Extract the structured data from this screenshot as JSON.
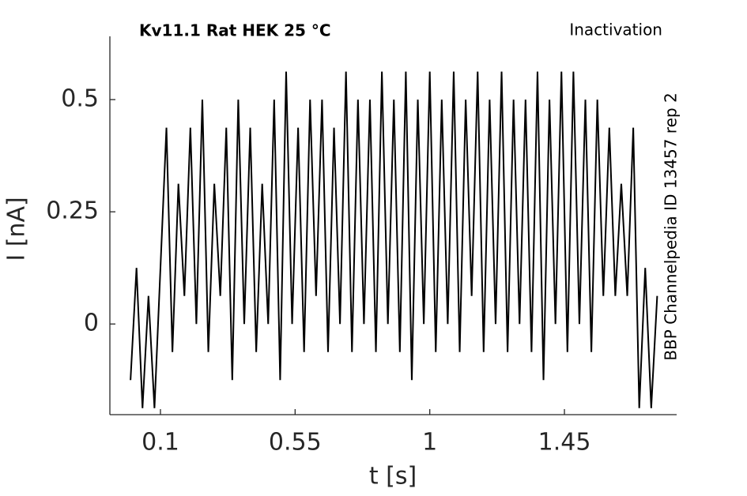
{
  "chart_data": {
    "type": "line",
    "title": "Kv11.1  Rat  HEK  25 °C",
    "subtitle": "Inactivation",
    "annotation": "BBP Channelpedia ID 13457 rep 2",
    "xlabel": "t [s]",
    "ylabel": "I [nA]",
    "x": [
      0,
      0.02,
      0.04,
      0.06,
      0.08,
      0.1,
      0.12,
      0.14,
      0.16,
      0.18,
      0.2,
      0.22,
      0.24,
      0.26,
      0.28,
      0.3,
      0.32,
      0.34,
      0.36,
      0.38,
      0.4,
      0.42,
      0.44,
      0.46,
      0.48,
      0.5,
      0.52,
      0.54,
      0.56,
      0.58,
      0.6,
      0.62,
      0.64,
      0.66,
      0.68,
      0.7,
      0.72,
      0.74,
      0.76,
      0.78,
      0.8,
      0.82,
      0.84,
      0.86,
      0.88,
      0.9,
      0.92,
      0.94,
      0.96,
      0.98,
      1.0,
      1.02,
      1.04,
      1.06,
      1.08,
      1.1,
      1.12,
      1.14,
      1.16,
      1.18,
      1.2,
      1.22,
      1.24,
      1.26,
      1.28,
      1.3,
      1.32,
      1.34,
      1.36,
      1.38,
      1.4,
      1.42,
      1.44,
      1.46,
      1.48,
      1.5,
      1.52,
      1.54,
      1.56,
      1.58,
      1.6,
      1.62,
      1.64,
      1.66,
      1.68,
      1.7,
      1.72,
      1.74,
      1.76
    ],
    "series": [
      {
        "color": "#000000",
        "values": [
          -0.125,
          0.125,
          -0.1875,
          0.0625,
          -0.1875,
          0.125,
          0.4375,
          -0.0625,
          0.3125,
          0.0625,
          0.4375,
          0,
          0.5,
          -0.0625,
          0.3125,
          0.0625,
          0.4375,
          -0.125,
          0.5,
          0,
          0.4375,
          -0.0625,
          0.3125,
          0,
          0.5,
          -0.125,
          0.5625,
          0,
          0.4375,
          -0.0625,
          0.5,
          0.0625,
          0.5,
          -0.0625,
          0.4375,
          0,
          0.5625,
          -0.0625,
          0.5,
          0,
          0.5,
          -0.0625,
          0.5625,
          0,
          0.5,
          -0.0625,
          0.5625,
          -0.125,
          0.5,
          0,
          0.5625,
          -0.0625,
          0.5,
          0,
          0.5625,
          -0.0625,
          0.5,
          0.0625,
          0.5625,
          -0.0625,
          0.5,
          0,
          0.5625,
          -0.0625,
          0.5,
          0,
          0.5,
          -0.0625,
          0.5625,
          -0.125,
          0.5,
          0,
          0.5625,
          -0.0625,
          0.5625,
          0,
          0.5,
          -0.0625,
          0.5,
          0.0625,
          0.4375,
          0.0625,
          0.3125,
          0.0625,
          0.4375,
          -0.1875,
          0.125,
          -0.1875,
          0.0625
        ]
      }
    ],
    "xlim": [
      -0.069,
      1.825
    ],
    "ylim": [
      -0.202,
      0.641
    ],
    "xticks": [
      0.1,
      0.55,
      1,
      1.45
    ],
    "yticks": [
      0,
      0.25,
      0.5
    ]
  }
}
